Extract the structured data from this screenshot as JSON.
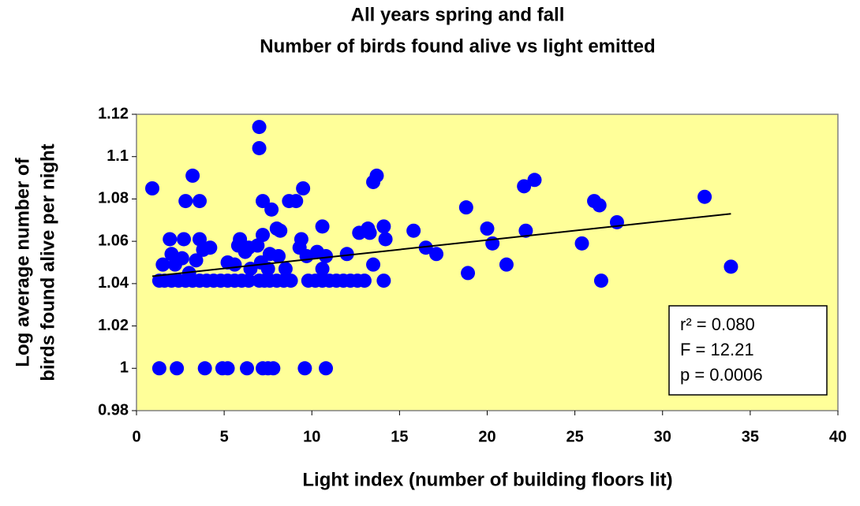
{
  "chart_data": {
    "type": "scatter",
    "title": [
      "All years spring and fall",
      "Number of birds found alive vs light emitted"
    ],
    "xlabel": "Light index (number of building floors lit)",
    "ylabel": [
      "Log average number of",
      "birds found alive per night"
    ],
    "xlim": [
      0,
      40
    ],
    "xticks": [
      0,
      5,
      10,
      15,
      20,
      25,
      30,
      35,
      40
    ],
    "ylim": [
      0.98,
      1.12
    ],
    "yticks": [
      0.98,
      1,
      1.02,
      1.04,
      1.06,
      1.08,
      1.1,
      1.12
    ],
    "color": "#0000ff",
    "background": "#ffff99",
    "series": [
      {
        "name": "birds",
        "color": "#0000ff",
        "x": [
          1.3,
          2.3,
          3.9,
          4.9,
          5.2,
          6.3,
          7.2,
          7.5,
          7.8,
          9.6,
          10.8,
          1.3,
          1.6,
          2.0,
          2.4,
          2.8,
          3.2,
          3.6,
          4.0,
          4.4,
          4.8,
          5.2,
          5.6,
          6.0,
          6.4,
          7.0,
          7.3,
          7.6,
          8.0,
          8.4,
          8.8,
          9.8,
          10.2,
          10.6,
          11.0,
          11.4,
          11.8,
          12.2,
          12.6,
          13.0,
          14.1,
          26.5,
          0.9,
          1.5,
          1.9,
          2.0,
          2.2,
          2.6,
          2.7,
          2.8,
          3.2,
          3.0,
          3.4,
          3.6,
          3.6,
          3.8,
          4.2,
          5.2,
          5.6,
          5.8,
          5.9,
          6.2,
          6.4,
          6.5,
          6.9,
          7.0,
          7.0,
          7.1,
          7.2,
          7.2,
          7.5,
          7.6,
          7.7,
          8.0,
          8.1,
          8.2,
          8.5,
          8.7,
          9.1,
          9.3,
          9.4,
          9.5,
          9.7,
          10.3,
          10.6,
          10.6,
          10.8,
          12.0,
          12.7,
          13.2,
          13.3,
          13.5,
          13.5,
          13.7,
          14.1,
          14.2,
          15.8,
          16.5,
          17.1,
          18.8,
          18.9,
          20.0,
          20.3,
          21.1,
          22.1,
          22.2,
          22.7,
          25.4,
          26.1,
          26.4,
          27.4,
          32.4,
          33.9
        ],
        "values": [
          1,
          1,
          1,
          1,
          1,
          1,
          1,
          1,
          1,
          1,
          1,
          1.0414,
          1.0414,
          1.0414,
          1.0414,
          1.0414,
          1.0414,
          1.0414,
          1.0414,
          1.0414,
          1.0414,
          1.0414,
          1.0414,
          1.0414,
          1.0414,
          1.0414,
          1.0414,
          1.0414,
          1.0414,
          1.0414,
          1.0414,
          1.0414,
          1.0414,
          1.0414,
          1.0414,
          1.0414,
          1.0414,
          1.0414,
          1.0414,
          1.0414,
          1.0414,
          1.0414,
          1.085,
          1.049,
          1.061,
          1.054,
          1.049,
          1.052,
          1.061,
          1.079,
          1.091,
          1.045,
          1.051,
          1.079,
          1.061,
          1.056,
          1.057,
          1.05,
          1.049,
          1.058,
          1.061,
          1.055,
          1.057,
          1.047,
          1.058,
          1.114,
          1.104,
          1.05,
          1.063,
          1.079,
          1.047,
          1.054,
          1.075,
          1.066,
          1.053,
          1.065,
          1.047,
          1.079,
          1.079,
          1.057,
          1.061,
          1.085,
          1.053,
          1.055,
          1.067,
          1.047,
          1.053,
          1.054,
          1.064,
          1.066,
          1.064,
          1.049,
          1.088,
          1.091,
          1.067,
          1.061,
          1.065,
          1.057,
          1.054,
          1.076,
          1.045,
          1.066,
          1.059,
          1.049,
          1.086,
          1.065,
          1.089,
          1.059,
          1.079,
          1.077,
          1.069,
          1.081,
          1.048
        ]
      }
    ],
    "trendline": {
      "x": [
        0.9,
        33.9
      ],
      "values": [
        1.0435,
        1.073
      ]
    },
    "annotations": [
      "r² = 0.080",
      "F = 12.21",
      "p = 0.0006"
    ]
  }
}
